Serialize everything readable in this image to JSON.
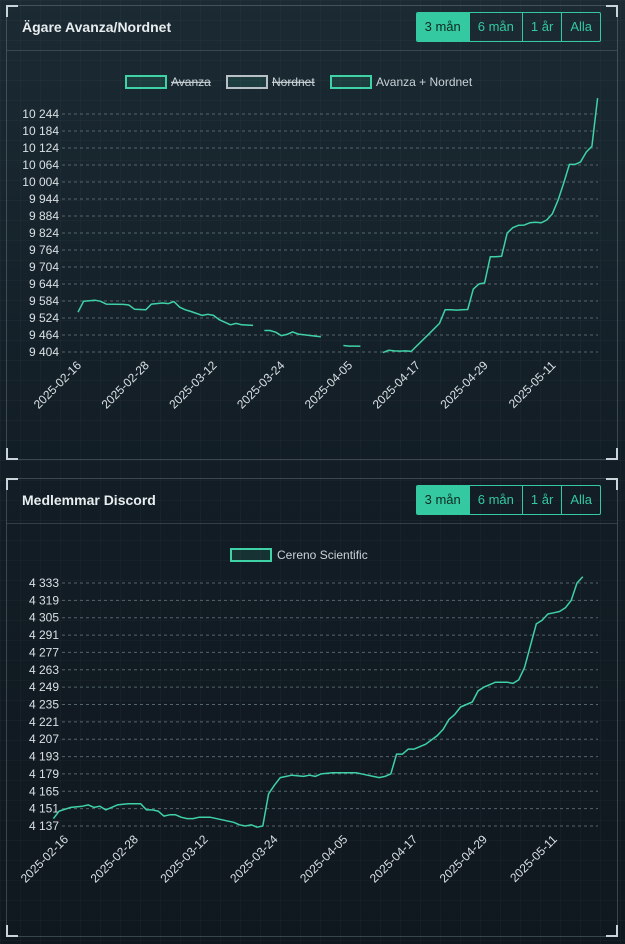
{
  "colors": {
    "accent": "#34c9a0",
    "line": "#3fd2a6",
    "grid": "#56646c"
  },
  "panels": [
    {
      "title": "Ägare Avanza/Nordnet",
      "buttons": [
        {
          "label": "3 mån",
          "active": true
        },
        {
          "label": "6 mån",
          "active": false
        },
        {
          "label": "1 år",
          "active": false
        },
        {
          "label": "Alla",
          "active": false
        }
      ]
    },
    {
      "title": "Medlemmar Discord",
      "buttons": [
        {
          "label": "3 mån",
          "active": true
        },
        {
          "label": "6 mån",
          "active": false
        },
        {
          "label": "1 år",
          "active": false
        },
        {
          "label": "Alla",
          "active": false
        }
      ]
    }
  ],
  "chart_data": [
    {
      "type": "line",
      "title": "",
      "legend_position": "top-center",
      "legend": [
        {
          "label": "Avanza",
          "hidden": true,
          "color": "#3fd2a6"
        },
        {
          "label": "Nordnet",
          "hidden": true,
          "color": "#b8c0c6"
        },
        {
          "label": "Avanza + Nordnet",
          "hidden": false,
          "color": "#3fd2a6"
        }
      ],
      "x_ticks": [
        "2025-02-16",
        "2025-02-28",
        "2025-03-12",
        "2025-03-24",
        "2025-04-05",
        "2025-04-17",
        "2025-04-29",
        "2025-05-11"
      ],
      "x_range": [
        "2025-02-16",
        "2025-05-15"
      ],
      "y_ticks": [
        9404,
        9464,
        9524,
        9584,
        9644,
        9704,
        9764,
        9824,
        9884,
        9944,
        10004,
        10064,
        10124,
        10184,
        10244
      ],
      "y_tick_labels": [
        "9 404",
        "9 464",
        "9 524",
        "9 584",
        "9 644",
        "9 704",
        "9 764",
        "9 824",
        "9 884",
        "9 944",
        "10 004",
        "10 064",
        "10 124",
        "10 184",
        "10 244"
      ],
      "y_range": [
        9404,
        10244
      ],
      "grid": true,
      "series": [
        {
          "name": "Avanza + Nordnet",
          "segments": [
            [
              [
                "2025-02-16",
                9545
              ],
              [
                "2025-02-17",
                9583
              ],
              [
                "2025-02-19",
                9587
              ],
              [
                "2025-02-20",
                9583
              ],
              [
                "2025-02-21",
                9573
              ],
              [
                "2025-02-24",
                9572
              ],
              [
                "2025-02-25",
                9570
              ],
              [
                "2025-02-26",
                9555
              ],
              [
                "2025-02-27",
                9554
              ],
              [
                "2025-02-28",
                9553
              ],
              [
                "2025-03-01",
                9573
              ],
              [
                "2025-03-03",
                9577
              ],
              [
                "2025-03-04",
                9575
              ],
              [
                "2025-03-05",
                9582
              ],
              [
                "2025-03-06",
                9562
              ],
              [
                "2025-03-07",
                9553
              ],
              [
                "2025-03-08",
                9547
              ],
              [
                "2025-03-10",
                9533
              ],
              [
                "2025-03-11",
                9537
              ],
              [
                "2025-03-12",
                9533
              ],
              [
                "2025-03-13",
                9518
              ],
              [
                "2025-03-15",
                9500
              ],
              [
                "2025-03-16",
                9505
              ],
              [
                "2025-03-17",
                9500
              ],
              [
                "2025-03-19",
                9498
              ]
            ],
            [
              [
                "2025-03-21",
                9480
              ],
              [
                "2025-03-22",
                9480
              ],
              [
                "2025-03-23",
                9474
              ],
              [
                "2025-03-24",
                9462
              ],
              [
                "2025-03-25",
                9466
              ],
              [
                "2025-03-26",
                9475
              ],
              [
                "2025-03-27",
                9467
              ],
              [
                "2025-03-28",
                9465
              ],
              [
                "2025-03-30",
                9460
              ],
              [
                "2025-03-31",
                9458
              ]
            ],
            [
              [
                "2025-04-04",
                9427
              ],
              [
                "2025-04-05",
                9425
              ],
              [
                "2025-04-06",
                9425
              ],
              [
                "2025-04-07",
                9424
              ]
            ],
            [
              [
                "2025-04-11",
                9402
              ],
              [
                "2025-04-12",
                9410
              ],
              [
                "2025-04-13",
                9408
              ],
              [
                "2025-04-14",
                9407
              ],
              [
                "2025-04-15",
                9408
              ],
              [
                "2025-04-16",
                9406
              ],
              [
                "2025-04-19",
                9465
              ],
              [
                "2025-04-21",
                9505
              ],
              [
                "2025-04-22",
                9553
              ],
              [
                "2025-04-23",
                9553
              ],
              [
                "2025-04-24",
                9552
              ],
              [
                "2025-04-25",
                9553
              ],
              [
                "2025-04-26",
                9554
              ],
              [
                "2025-04-27",
                9626
              ],
              [
                "2025-04-28",
                9644
              ],
              [
                "2025-04-29",
                9648
              ],
              [
                "2025-04-30",
                9740
              ],
              [
                "2025-05-01",
                9740
              ],
              [
                "2025-05-02",
                9742
              ],
              [
                "2025-05-03",
                9824
              ],
              [
                "2025-05-04",
                9843
              ],
              [
                "2025-05-05",
                9851
              ],
              [
                "2025-05-06",
                9852
              ],
              [
                "2025-05-07",
                9860
              ],
              [
                "2025-05-08",
                9862
              ],
              [
                "2025-05-09",
                9860
              ],
              [
                "2025-05-10",
                9870
              ],
              [
                "2025-05-11",
                9892
              ],
              [
                "2025-05-12",
                9940
              ],
              [
                "2025-05-13",
                10000
              ],
              [
                "2025-05-14",
                10066
              ],
              [
                "2025-05-15",
                10066
              ],
              [
                "2025-05-16",
                10075
              ],
              [
                "2025-05-17",
                10110
              ],
              [
                "2025-05-18",
                10130
              ],
              [
                "2025-05-19",
                10300
              ]
            ]
          ]
        }
      ]
    },
    {
      "type": "line",
      "title": "",
      "legend_position": "top-center",
      "legend": [
        {
          "label": "Cereno Scientific",
          "hidden": false,
          "color": "#3fd2a6"
        }
      ],
      "x_ticks": [
        "2025-02-16",
        "2025-02-28",
        "2025-03-12",
        "2025-03-24",
        "2025-04-05",
        "2025-04-17",
        "2025-04-29",
        "2025-05-11"
      ],
      "x_range": [
        "2025-02-16",
        "2025-05-15"
      ],
      "y_ticks": [
        4137,
        4151,
        4165,
        4179,
        4193,
        4207,
        4221,
        4235,
        4249,
        4263,
        4277,
        4291,
        4305,
        4319,
        4333
      ],
      "y_tick_labels": [
        "4 137",
        "4 151",
        "4 165",
        "4 179",
        "4 193",
        "4 207",
        "4 221",
        "4 235",
        "4 249",
        "4 263",
        "4 277",
        "4 291",
        "4 305",
        "4 319",
        "4 333"
      ],
      "y_range": [
        4137,
        4333
      ],
      "grid": true,
      "series": [
        {
          "name": "Cereno Scientific",
          "segments": [
            [
              [
                "2025-02-14",
                4143
              ],
              [
                "2025-02-15",
                4149
              ],
              [
                "2025-02-17",
                4152
              ],
              [
                "2025-02-19",
                4153
              ],
              [
                "2025-02-20",
                4154
              ],
              [
                "2025-02-21",
                4152
              ],
              [
                "2025-02-22",
                4153
              ],
              [
                "2025-02-23",
                4150
              ],
              [
                "2025-02-25",
                4154
              ],
              [
                "2025-02-27",
                4155
              ],
              [
                "2025-02-28",
                4155
              ],
              [
                "2025-03-01",
                4155
              ],
              [
                "2025-03-02",
                4150
              ],
              [
                "2025-03-03",
                4150
              ],
              [
                "2025-03-04",
                4149
              ],
              [
                "2025-03-05",
                4145
              ],
              [
                "2025-03-06",
                4146
              ],
              [
                "2025-03-07",
                4146
              ],
              [
                "2025-03-08",
                4144
              ],
              [
                "2025-03-09",
                4143
              ],
              [
                "2025-03-10",
                4143
              ],
              [
                "2025-03-11",
                4144
              ],
              [
                "2025-03-13",
                4144
              ],
              [
                "2025-03-15",
                4142
              ],
              [
                "2025-03-17",
                4140
              ],
              [
                "2025-03-18",
                4138
              ],
              [
                "2025-03-19",
                4137
              ],
              [
                "2025-03-20",
                4138
              ],
              [
                "2025-03-21",
                4136
              ],
              [
                "2025-03-22",
                4137
              ],
              [
                "2025-03-23",
                4163
              ],
              [
                "2025-03-24",
                4170
              ],
              [
                "2025-03-25",
                4176
              ],
              [
                "2025-03-27",
                4178
              ],
              [
                "2025-03-29",
                4177
              ],
              [
                "2025-03-30",
                4178
              ],
              [
                "2025-03-31",
                4177
              ],
              [
                "2025-04-01",
                4179
              ],
              [
                "2025-04-03",
                4180
              ],
              [
                "2025-04-05",
                4180
              ],
              [
                "2025-04-07",
                4180
              ],
              [
                "2025-04-09",
                4178
              ],
              [
                "2025-04-11",
                4176
              ],
              [
                "2025-04-12",
                4177
              ],
              [
                "2025-04-13",
                4179
              ],
              [
                "2025-04-14",
                4195
              ],
              [
                "2025-04-15",
                4195
              ],
              [
                "2025-04-16",
                4199
              ],
              [
                "2025-04-17",
                4199
              ],
              [
                "2025-04-19",
                4203
              ],
              [
                "2025-04-21",
                4210
              ],
              [
                "2025-04-22",
                4215
              ],
              [
                "2025-04-23",
                4223
              ],
              [
                "2025-04-24",
                4227
              ],
              [
                "2025-04-25",
                4233
              ],
              [
                "2025-04-27",
                4237
              ],
              [
                "2025-04-28",
                4246
              ],
              [
                "2025-04-29",
                4249
              ],
              [
                "2025-04-30",
                4251
              ],
              [
                "2025-05-01",
                4253
              ],
              [
                "2025-05-03",
                4253
              ],
              [
                "2025-05-04",
                4252
              ],
              [
                "2025-05-05",
                4255
              ],
              [
                "2025-05-06",
                4265
              ],
              [
                "2025-05-08",
                4300
              ],
              [
                "2025-05-09",
                4303
              ],
              [
                "2025-05-10",
                4308
              ],
              [
                "2025-05-11",
                4309
              ],
              [
                "2025-05-12",
                4310
              ],
              [
                "2025-05-13",
                4313
              ],
              [
                "2025-05-14",
                4319
              ],
              [
                "2025-05-15",
                4333
              ],
              [
                "2025-05-16",
                4338
              ]
            ]
          ]
        }
      ]
    }
  ]
}
